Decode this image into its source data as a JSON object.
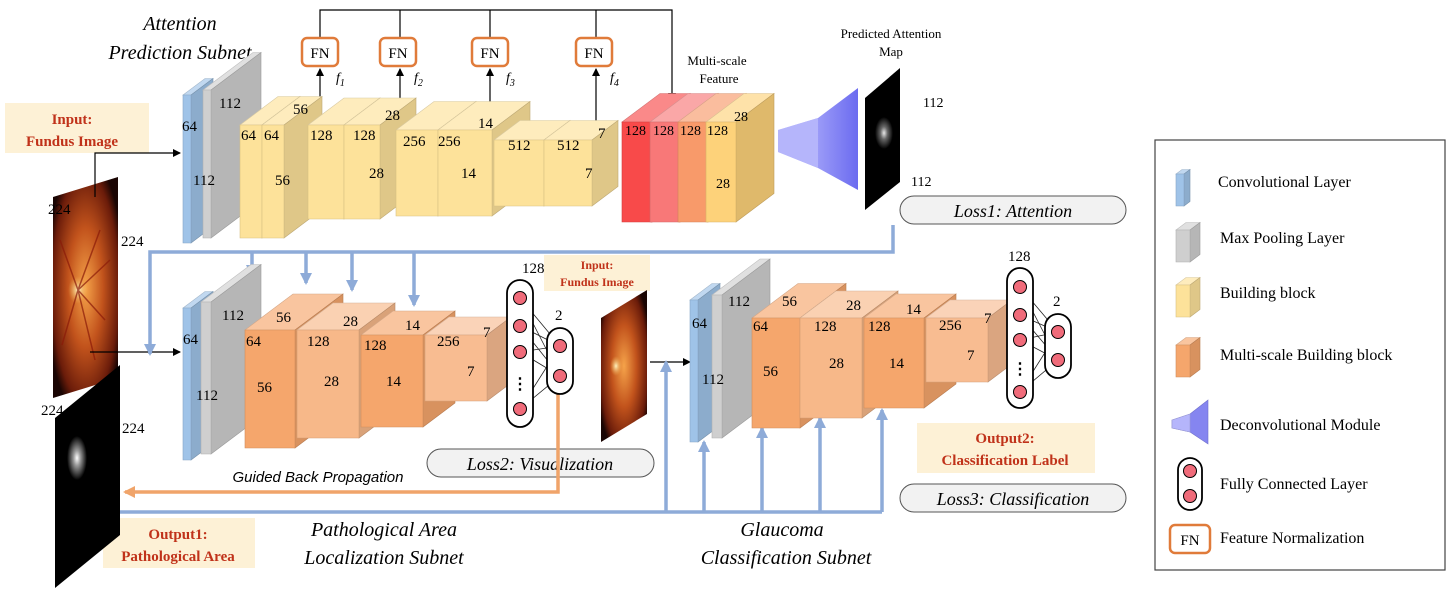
{
  "subnets": {
    "attention_line1": "Attention",
    "attention_line2": "Prediction Subnet",
    "localization_line1": "Pathological Area",
    "localization_line2": "Localization Subnet",
    "classification_line1": "Glaucoma",
    "classification_line2": "Classification Subnet"
  },
  "input1": {
    "line1": "Input:",
    "line2": "Fundus Image"
  },
  "input2": {
    "line1": "Input:",
    "line2": "Fundus Image"
  },
  "output1": {
    "line1": "Output1:",
    "line2": "Pathological Area"
  },
  "output2": {
    "line1": "Output2:",
    "line2": "Classification Label"
  },
  "losses": {
    "attention": "Loss1: Attention",
    "visualization": "Loss2: Visualization",
    "classification": "Loss3: Classification"
  },
  "fn_label": "FN",
  "features": [
    "f",
    "1",
    "f",
    "2",
    "f",
    "3",
    "f",
    "4"
  ],
  "multiscale": {
    "line1": "Multi-scale",
    "line2": "Feature"
  },
  "predicted_map": {
    "line1": "Predicted Attention",
    "line2": "Map",
    "dim_w": "112",
    "dim_h": "112"
  },
  "input_dims": {
    "top_h": "224",
    "top_w": "224",
    "heat_h": "224",
    "heat_w": "224"
  },
  "guided_bp": "Guided Back Propagation",
  "attention_dims": {
    "conv": [
      "64",
      "112"
    ],
    "pool": "112",
    "b1": [
      "64",
      "64",
      "56",
      "56"
    ],
    "b2": [
      "128",
      "128",
      "28",
      "28"
    ],
    "b3": [
      "256",
      "256",
      "14",
      "14"
    ],
    "b4": [
      "512",
      "512",
      "7",
      "7"
    ],
    "ms": [
      "128",
      "128",
      "128",
      "128",
      "28",
      "28"
    ]
  },
  "loc_dims": {
    "conv": [
      "64",
      "112"
    ],
    "pool": "112",
    "b1": [
      "64",
      "56",
      "56"
    ],
    "b2": [
      "128",
      "28",
      "28"
    ],
    "b3": [
      "128",
      "14",
      "14"
    ],
    "b4": [
      "256",
      "7",
      "7"
    ],
    "fc_top": "128",
    "fc_out": "2",
    "dots": "⋮"
  },
  "cls_dims": {
    "conv": [
      "64",
      "112"
    ],
    "pool": "112",
    "b1": [
      "64",
      "56",
      "56"
    ],
    "b2": [
      "128",
      "28",
      "28"
    ],
    "b3": [
      "128",
      "14",
      "14"
    ],
    "b4": [
      "256",
      "7",
      "7"
    ],
    "fc_top": "128",
    "fc_out": "2",
    "dots": "⋮"
  },
  "legend": {
    "items": [
      "Convolutional Layer",
      "Max Pooling Layer",
      "Building block",
      "Multi-scale Building block",
      "Deconvolutional Module",
      "Fully Connected Layer",
      "Feature Normalization"
    ],
    "fn": "FN"
  },
  "colors": {
    "conv": "#9fc3e8",
    "pool": "#cfcfcf",
    "block": "#fde29a",
    "msblock": "#f5a66c",
    "deconv": "#8585f0",
    "arrow_blue": "#8eabd8",
    "arrow_orange": "#f0a46a",
    "fn_border": "#e07b3a",
    "label_bg": "#fdf1d6",
    "label_red": "#c0321a",
    "ms1": "#f84a4a",
    "ms2": "#f87878",
    "ms3": "#f89a6a",
    "ms4": "#fdd27a"
  }
}
